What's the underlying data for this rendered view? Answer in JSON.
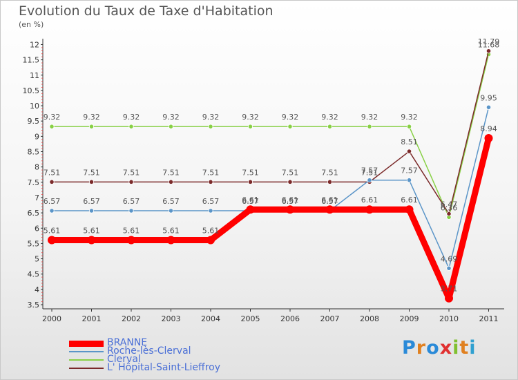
{
  "title": "Evolution du Taux de Taxe d'Habitation",
  "ylabel_text": "(en %)",
  "brand": {
    "letters": [
      "P",
      "r",
      "o",
      "x",
      "i",
      "t",
      "i"
    ],
    "colors": [
      "#2a8ad8",
      "#e08020",
      "#2a8ad8",
      "#e03030",
      "#80c030",
      "#e08020",
      "#30a0d0"
    ]
  },
  "chart_data": {
    "type": "line",
    "title": "Evolution du Taux de Taxe d'Habitation",
    "ylabel": "(en %)",
    "xlabel": "",
    "ylim": [
      3.5,
      12
    ],
    "yticks": [
      "3.5",
      "4",
      "4.5",
      "5",
      "5.5",
      "6",
      "6.5",
      "7",
      "7.5",
      "8",
      "8.5",
      "9",
      "9.5",
      "10",
      "10.5",
      "11",
      "11.5",
      "12"
    ],
    "categories": [
      "2000",
      "2001",
      "2002",
      "2003",
      "2004",
      "2005",
      "2006",
      "2007",
      "2008",
      "2009",
      "2010",
      "2011"
    ],
    "series": [
      {
        "name": "BRANNE",
        "color": "#ff0000",
        "values": [
          5.61,
          5.61,
          5.61,
          5.61,
          5.61,
          6.61,
          6.61,
          6.61,
          6.61,
          6.61,
          3.71,
          8.94
        ],
        "labels": [
          "5.61",
          "5.61",
          "5.61",
          "5.61",
          "5.61",
          "6.61",
          "6.61",
          "6.61",
          "6.61",
          "6.61",
          "3.71",
          "8.94"
        ]
      },
      {
        "name": "Roche-lès-Clerval",
        "color": "#5b95c8",
        "values": [
          6.57,
          6.57,
          6.57,
          6.57,
          6.57,
          6.57,
          6.57,
          6.57,
          7.57,
          7.57,
          4.69,
          9.95
        ],
        "labels": [
          "6.57",
          "6.57",
          "6.57",
          "6.57",
          "6.57",
          "6.57",
          "6.57",
          "6.57",
          "7.57",
          "7.57",
          "4.69",
          "9.95"
        ]
      },
      {
        "name": "Clerval",
        "color": "#88d045",
        "values": [
          9.32,
          9.32,
          9.32,
          9.32,
          9.32,
          9.32,
          9.32,
          9.32,
          9.32,
          9.32,
          6.36,
          11.68
        ],
        "labels": [
          "9.32",
          "9.32",
          "9.32",
          "9.32",
          "9.32",
          "9.32",
          "9.32",
          "9.32",
          "9.32",
          "9.32",
          "6.36",
          "11.68"
        ]
      },
      {
        "name": "L' Hôpital-Saint-Lieffroy",
        "color": "#7b2a2a",
        "values": [
          7.51,
          7.51,
          7.51,
          7.51,
          7.51,
          7.51,
          7.51,
          7.51,
          7.51,
          8.51,
          6.47,
          11.79
        ],
        "labels": [
          "7.51",
          "7.51",
          "7.51",
          "7.51",
          "7.51",
          "7.51",
          "7.51",
          "7.51",
          "7.51",
          "8.51",
          "6.47",
          "11.79"
        ]
      }
    ],
    "legend_position": "bottom-left",
    "grid": false
  }
}
